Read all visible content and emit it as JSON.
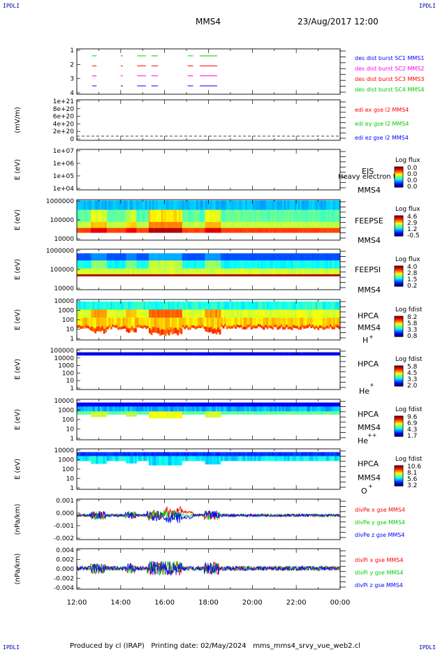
{
  "header": {
    "corner_tl": "IPDLI",
    "corner_tr": "IPDLI",
    "corner_bl": "IPDLI",
    "corner_br": "IPDLI",
    "spacecraft": "MMS4",
    "datetime": "23/Aug/2017 12:00"
  },
  "footer": {
    "text": "Produced by cl (IRAP)   Printing date: 02/May/2024   mms_mms4_srvy_vue_web2.cl"
  },
  "colors": {
    "mms1": "#0000ff",
    "mms2": "#ff00ff",
    "mms3": "#ff0000",
    "mms4": "#00cc00",
    "x": "#ff0000",
    "y": "#00cc00",
    "z": "#0000ff"
  },
  "chart_data": [
    {
      "type": "line",
      "id": "burst",
      "ylabel": "",
      "yticks": [
        "1",
        "2",
        "3",
        "4"
      ],
      "ylim": [
        0.5,
        4.5
      ],
      "series": [
        {
          "name": "des dist burst SC1 MMS1",
          "level": 1,
          "color": "#0000ff"
        },
        {
          "name": "des dist burst SC2 MMS2",
          "level": 2,
          "color": "#ff00ff"
        },
        {
          "name": "des dist burst SC3 MMS3",
          "level": 3,
          "color": "#ff0000"
        },
        {
          "name": "des dist burst SC4 MMS4",
          "level": 4,
          "color": "#00cc00"
        }
      ],
      "intervals_hours": [
        [
          12.7,
          12.9
        ],
        [
          14.0,
          14.1
        ],
        [
          14.75,
          15.15
        ],
        [
          15.4,
          15.7
        ],
        [
          17.05,
          17.3
        ],
        [
          17.6,
          18.4
        ]
      ]
    },
    {
      "type": "line",
      "id": "edi",
      "ylabel": "(mV/m)",
      "yticks": [
        "1e+21",
        "8e+20",
        "6e+20",
        "4e+20",
        "2e+20",
        "0"
      ],
      "ylim": [
        0,
        1e+21
      ],
      "series": [
        {
          "name": "edi ex gse l2 MMS4",
          "color": "#ff0000"
        },
        {
          "name": "edi ey gse l2 MMS4",
          "color": "#00cc00"
        },
        {
          "name": "edi ez gse l2 MMS4",
          "color": "#0000ff"
        }
      ]
    },
    {
      "type": "heatmap",
      "id": "eis",
      "ylabel": "E (eV)",
      "yticks": [
        "1e+07",
        "1e+06",
        "1e+05",
        "1e+04"
      ],
      "ylim": [
        10000.0,
        10000000.0
      ],
      "instrument": "EIS",
      "spacecraft": "MMS4",
      "overlay_text": "Heavy electron to",
      "colorbar_title": "Log flux",
      "colorbar_ticks": [
        "0.0",
        "0.0",
        "0.0",
        "0.0"
      ]
    },
    {
      "type": "heatmap",
      "id": "feepse",
      "ylabel": "E (eV)",
      "yticks": [
        "1000000",
        "100000",
        "10000"
      ],
      "ylim": [
        10000.0,
        1000000.0
      ],
      "instrument": "FEEPSE",
      "spacecraft": "MMS4",
      "colorbar_title": "Log flux",
      "colorbar_ticks": [
        "4.6",
        "2.9",
        "1.2",
        "-0.5"
      ]
    },
    {
      "type": "heatmap",
      "id": "feepsi",
      "ylabel": "E (eV)",
      "yticks": [
        "1000000",
        "100000",
        "10000"
      ],
      "ylim": [
        10000.0,
        1000000.0
      ],
      "instrument": "FEEPSI",
      "spacecraft": "MMS4",
      "colorbar_title": "Log flux",
      "colorbar_ticks": [
        "4.0",
        "2.8",
        "1.5",
        "0.2"
      ]
    },
    {
      "type": "heatmap",
      "id": "hpca_h",
      "ylabel": "E (eV)",
      "yticks": [
        "10000",
        "1000",
        "100",
        "10",
        "1"
      ],
      "ylim": [
        1,
        40000
      ],
      "instrument": "HPCA",
      "spacecraft": "MMS4",
      "species": "H",
      "species_sup": "+",
      "colorbar_title": "Log fdist",
      "colorbar_ticks": [
        "8.2",
        "5.8",
        "3.3",
        "0.8"
      ]
    },
    {
      "type": "heatmap",
      "id": "hpca_he1",
      "ylabel": "E (eV)",
      "yticks": [
        "100000",
        "10000",
        "1000",
        "100",
        "10",
        "1"
      ],
      "ylim": [
        1,
        100000
      ],
      "instrument": "HPCA",
      "spacecraft": "",
      "species": "He",
      "species_sup": "+",
      "colorbar_title": "Log fdist",
      "colorbar_ticks": [
        "5.8",
        "4.5",
        "3.3",
        "2.0"
      ]
    },
    {
      "type": "heatmap",
      "id": "hpca_he2",
      "ylabel": "E (eV)",
      "yticks": [
        "10000",
        "1000",
        "100",
        "10",
        "1"
      ],
      "ylim": [
        1,
        40000
      ],
      "instrument": "HPCA",
      "spacecraft": "MMS4",
      "species": "He",
      "species_sup": "++",
      "colorbar_title": "Log fdist",
      "colorbar_ticks": [
        "9.6",
        "6.9",
        "4.3",
        "1.7"
      ]
    },
    {
      "type": "heatmap",
      "id": "hpca_o",
      "ylabel": "E (eV)",
      "yticks": [
        "10000",
        "1000",
        "100",
        "10",
        "1"
      ],
      "ylim": [
        1,
        40000
      ],
      "instrument": "HPCA",
      "spacecraft": "MMS4",
      "species": "O",
      "species_sup": "+",
      "colorbar_title": "Log fdist",
      "colorbar_ticks": [
        "10.6",
        "8.1",
        "5.6",
        "3.2"
      ]
    },
    {
      "type": "line",
      "id": "divpe",
      "ylabel": "(nPa/km)",
      "yticks": [
        "0.001",
        "0.000",
        "-0.001",
        "-0.002"
      ],
      "ylim": [
        -0.0021,
        0.0014
      ],
      "series": [
        {
          "name": "divPe x gse MMS4",
          "color": "#ff0000"
        },
        {
          "name": "divPe y gse MMS4",
          "color": "#00cc00"
        },
        {
          "name": "divPe z gse MMS4",
          "color": "#0000ff"
        }
      ]
    },
    {
      "type": "line",
      "id": "divpi",
      "ylabel": "(nPa/km)",
      "yticks": [
        "0.004",
        "0.002",
        "0.000",
        "-0.002",
        "-0.004"
      ],
      "ylim": [
        -0.0055,
        0.0052
      ],
      "series": [
        {
          "name": "divPi x gse MMS4",
          "color": "#ff0000"
        },
        {
          "name": "divPi y gse MMS4",
          "color": "#00cc00"
        },
        {
          "name": "divPi z gse MMS4",
          "color": "#0000ff"
        }
      ]
    }
  ],
  "x_axis": {
    "ticks": [
      "12:00",
      "14:00",
      "16:00",
      "18:00",
      "20:00",
      "22:00",
      "00:00"
    ],
    "range_hours": [
      12,
      24
    ]
  }
}
